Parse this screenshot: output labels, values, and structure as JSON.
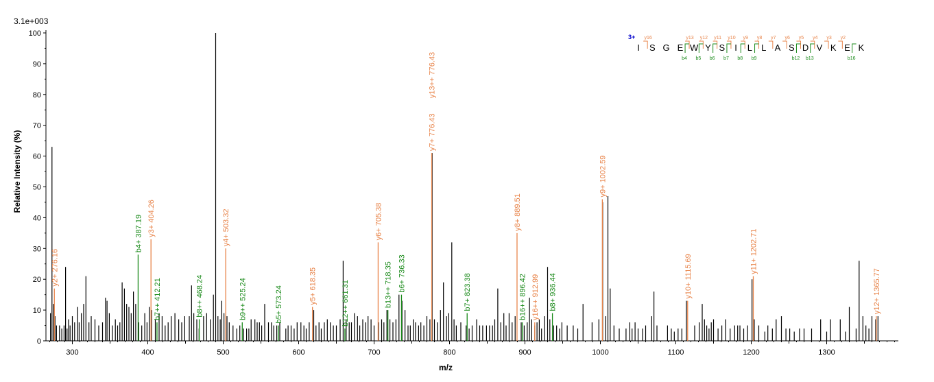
{
  "chart_data": {
    "type": "bar",
    "scale_label": "3.1e+003",
    "xlabel": "m/z",
    "ylabel": "Relative   Intensity (%)",
    "xlim": [
      265,
      1395
    ],
    "ylim": [
      0,
      100
    ],
    "x_ticks": [
      300,
      400,
      500,
      600,
      700,
      800,
      900,
      1000,
      1100,
      1200,
      1300
    ],
    "y_ticks": [
      0,
      10,
      20,
      30,
      40,
      50,
      60,
      70,
      80,
      90,
      100
    ],
    "colors": {
      "y_ion": "#e8844a",
      "b_ion": "#1a8a1a",
      "peak": "#000000",
      "charge": "#0000cc"
    },
    "peaks": [
      [
        271,
        9
      ],
      [
        273,
        63
      ],
      [
        275,
        12
      ],
      [
        277,
        8
      ],
      [
        279,
        5
      ],
      [
        283,
        5
      ],
      [
        286,
        4
      ],
      [
        289,
        5
      ],
      [
        291,
        24
      ],
      [
        293,
        4
      ],
      [
        295,
        7
      ],
      [
        297,
        5
      ],
      [
        300,
        8
      ],
      [
        303,
        6
      ],
      [
        307,
        11
      ],
      [
        309,
        6
      ],
      [
        312,
        9
      ],
      [
        315,
        12
      ],
      [
        318,
        21
      ],
      [
        322,
        6
      ],
      [
        325,
        8
      ],
      [
        330,
        7
      ],
      [
        335,
        5
      ],
      [
        340,
        6
      ],
      [
        344,
        14
      ],
      [
        346,
        13
      ],
      [
        349,
        9
      ],
      [
        353,
        5
      ],
      [
        357,
        7
      ],
      [
        360,
        5
      ],
      [
        363,
        6
      ],
      [
        366,
        19
      ],
      [
        369,
        17
      ],
      [
        372,
        12
      ],
      [
        375,
        11
      ],
      [
        378,
        9
      ],
      [
        381,
        16
      ],
      [
        384,
        12
      ],
      [
        388,
        6
      ],
      [
        392,
        5
      ],
      [
        396,
        9
      ],
      [
        399,
        6
      ],
      [
        402,
        11
      ],
      [
        405,
        10
      ],
      [
        410,
        7
      ],
      [
        415,
        9
      ],
      [
        419,
        8
      ],
      [
        423,
        5
      ],
      [
        427,
        6
      ],
      [
        431,
        8
      ],
      [
        436,
        9
      ],
      [
        441,
        7
      ],
      [
        445,
        6
      ],
      [
        449,
        8
      ],
      [
        455,
        8
      ],
      [
        458,
        18
      ],
      [
        461,
        9
      ],
      [
        465,
        7
      ],
      [
        468,
        4
      ],
      [
        474,
        8
      ],
      [
        478,
        9
      ],
      [
        483,
        7
      ],
      [
        487,
        15
      ],
      [
        490,
        100
      ],
      [
        493,
        8
      ],
      [
        496,
        7
      ],
      [
        498,
        13
      ],
      [
        501,
        9
      ],
      [
        505,
        8
      ],
      [
        508,
        6
      ],
      [
        513,
        5
      ],
      [
        518,
        4
      ],
      [
        522,
        5
      ],
      [
        527,
        4
      ],
      [
        531,
        4
      ],
      [
        534,
        4
      ],
      [
        537,
        7
      ],
      [
        542,
        7
      ],
      [
        545,
        6
      ],
      [
        548,
        6
      ],
      [
        551,
        5
      ],
      [
        555,
        12
      ],
      [
        560,
        6
      ],
      [
        564,
        6
      ],
      [
        567,
        5
      ],
      [
        571,
        5
      ],
      [
        575,
        6
      ],
      [
        583,
        4
      ],
      [
        586,
        5
      ],
      [
        590,
        5
      ],
      [
        594,
        4
      ],
      [
        598,
        6
      ],
      [
        603,
        6
      ],
      [
        607,
        5
      ],
      [
        610,
        4
      ],
      [
        614,
        6
      ],
      [
        620,
        10
      ],
      [
        623,
        5
      ],
      [
        627,
        6
      ],
      [
        630,
        4
      ],
      [
        634,
        6
      ],
      [
        638,
        7
      ],
      [
        642,
        6
      ],
      [
        646,
        5
      ],
      [
        650,
        5
      ],
      [
        655,
        7
      ],
      [
        659,
        26
      ],
      [
        663,
        7
      ],
      [
        667,
        6
      ],
      [
        670,
        6
      ],
      [
        674,
        9
      ],
      [
        678,
        8
      ],
      [
        681,
        5
      ],
      [
        685,
        7
      ],
      [
        689,
        6
      ],
      [
        692,
        8
      ],
      [
        696,
        7
      ],
      [
        700,
        5
      ],
      [
        706,
        6
      ],
      [
        710,
        7
      ],
      [
        713,
        6
      ],
      [
        717,
        10
      ],
      [
        721,
        7
      ],
      [
        725,
        6
      ],
      [
        729,
        7
      ],
      [
        733,
        15
      ],
      [
        737,
        13
      ],
      [
        741,
        10
      ],
      [
        745,
        5
      ],
      [
        748,
        5
      ],
      [
        752,
        7
      ],
      [
        755,
        6
      ],
      [
        759,
        5
      ],
      [
        762,
        6
      ],
      [
        766,
        5
      ],
      [
        770,
        8
      ],
      [
        774,
        7
      ],
      [
        777,
        61
      ],
      [
        780,
        7
      ],
      [
        784,
        6
      ],
      [
        788,
        10
      ],
      [
        792,
        19
      ],
      [
        796,
        8
      ],
      [
        799,
        9
      ],
      [
        803,
        32
      ],
      [
        806,
        7
      ],
      [
        809,
        5
      ],
      [
        815,
        6
      ],
      [
        822,
        5
      ],
      [
        826,
        4
      ],
      [
        830,
        5
      ],
      [
        836,
        7
      ],
      [
        840,
        5
      ],
      [
        844,
        5
      ],
      [
        849,
        5
      ],
      [
        853,
        5
      ],
      [
        857,
        5
      ],
      [
        860,
        7
      ],
      [
        864,
        17
      ],
      [
        868,
        6
      ],
      [
        872,
        9
      ],
      [
        875,
        5
      ],
      [
        879,
        9
      ],
      [
        883,
        6
      ],
      [
        887,
        8
      ],
      [
        895,
        6
      ],
      [
        899,
        5
      ],
      [
        903,
        6
      ],
      [
        906,
        14
      ],
      [
        909,
        7
      ],
      [
        913,
        5
      ],
      [
        916,
        6
      ],
      [
        919,
        7
      ],
      [
        922,
        4
      ],
      [
        926,
        8
      ],
      [
        930,
        24
      ],
      [
        933,
        7
      ],
      [
        938,
        5
      ],
      [
        942,
        5
      ],
      [
        946,
        4
      ],
      [
        949,
        6
      ],
      [
        956,
        5
      ],
      [
        964,
        5
      ],
      [
        970,
        4
      ],
      [
        977,
        12
      ],
      [
        989,
        6
      ],
      [
        998,
        7
      ],
      [
        1003,
        45
      ],
      [
        1007,
        8
      ],
      [
        1010,
        47
      ],
      [
        1013,
        17
      ],
      [
        1018,
        5
      ],
      [
        1025,
        4
      ],
      [
        1034,
        4
      ],
      [
        1039,
        6
      ],
      [
        1042,
        4
      ],
      [
        1046,
        6
      ],
      [
        1050,
        4
      ],
      [
        1056,
        4
      ],
      [
        1060,
        5
      ],
      [
        1068,
        8
      ],
      [
        1071,
        16
      ],
      [
        1075,
        5
      ],
      [
        1089,
        5
      ],
      [
        1094,
        4
      ],
      [
        1098,
        3
      ],
      [
        1103,
        4
      ],
      [
        1108,
        4
      ],
      [
        1114,
        13
      ],
      [
        1125,
        5
      ],
      [
        1131,
        6
      ],
      [
        1135,
        12
      ],
      [
        1138,
        7
      ],
      [
        1141,
        5
      ],
      [
        1144,
        4
      ],
      [
        1147,
        6
      ],
      [
        1150,
        7
      ],
      [
        1156,
        4
      ],
      [
        1161,
        5
      ],
      [
        1166,
        7
      ],
      [
        1172,
        4
      ],
      [
        1178,
        5
      ],
      [
        1182,
        5
      ],
      [
        1185,
        5
      ],
      [
        1190,
        4
      ],
      [
        1195,
        5
      ],
      [
        1201,
        20
      ],
      [
        1204,
        7
      ],
      [
        1210,
        5
      ],
      [
        1218,
        3
      ],
      [
        1222,
        5
      ],
      [
        1228,
        4
      ],
      [
        1233,
        7
      ],
      [
        1240,
        8
      ],
      [
        1246,
        4
      ],
      [
        1251,
        4
      ],
      [
        1257,
        3
      ],
      [
        1264,
        4
      ],
      [
        1270,
        4
      ],
      [
        1280,
        4
      ],
      [
        1292,
        7
      ],
      [
        1300,
        3
      ],
      [
        1305,
        7
      ],
      [
        1318,
        7
      ],
      [
        1325,
        3
      ],
      [
        1330,
        11
      ],
      [
        1339,
        4
      ],
      [
        1343,
        26
      ],
      [
        1348,
        8
      ],
      [
        1352,
        5
      ],
      [
        1356,
        4
      ],
      [
        1360,
        8
      ],
      [
        1365,
        7
      ],
      [
        1368,
        8
      ]
    ],
    "annotations": [
      {
        "label": "y2+ 276.16",
        "x": 276.16,
        "y": 17,
        "ion": "y"
      },
      {
        "label": "b4+ 387.19",
        "x": 387.19,
        "y": 28,
        "ion": "b"
      },
      {
        "label": "y3+ 404.26",
        "x": 404.26,
        "y": 33,
        "ion": "y"
      },
      {
        "label": "b7++ 412.21",
        "x": 412.21,
        "y": 6,
        "ion": "b"
      },
      {
        "label": "b8++ 468.24",
        "x": 468.24,
        "y": 7,
        "ion": "b"
      },
      {
        "label": "y4+ 503.32",
        "x": 503.32,
        "y": 30,
        "ion": "y"
      },
      {
        "label": "b9++ 525.24",
        "x": 525.24,
        "y": 6,
        "ion": "b"
      },
      {
        "label": "b5+ 573.24",
        "x": 573.24,
        "y": 5,
        "ion": "b"
      },
      {
        "label": "y5+ 618.35",
        "x": 618.35,
        "y": 11,
        "ion": "y"
      },
      {
        "label": "b12++ 661.31",
        "x": 661.31,
        "y": 4,
        "ion": "b"
      },
      {
        "label": "y6+ 705.38",
        "x": 705.38,
        "y": 32,
        "ion": "y"
      },
      {
        "label": "b13++ 718.35",
        "x": 718.35,
        "y": 10,
        "ion": "b"
      },
      {
        "label": "b6+ 736.33",
        "x": 736.33,
        "y": 15,
        "ion": "b"
      },
      {
        "label": "y7+ 776.43",
        "x": 776.43,
        "y": 61,
        "ion": "y",
        "label2": "y13++ 776.43"
      },
      {
        "label": "b7+ 823.38",
        "x": 823.38,
        "y": 9,
        "ion": "b"
      },
      {
        "label": "y8+ 889.51",
        "x": 889.51,
        "y": 35,
        "ion": "y"
      },
      {
        "label": "b16++ 896.42",
        "x": 896.42,
        "y": 6,
        "ion": "b"
      },
      {
        "label": "y16++ 912.99",
        "x": 912.99,
        "y": 6,
        "ion": "y"
      },
      {
        "label": "b8+ 936.44",
        "x": 936.44,
        "y": 9,
        "ion": "b"
      },
      {
        "label": "y9+ 1002.59",
        "x": 1002.59,
        "y": 46,
        "ion": "y"
      },
      {
        "label": "y10+ 1115.69",
        "x": 1115.69,
        "y": 13,
        "ion": "y"
      },
      {
        "label": "y11+ 1202.71",
        "x": 1202.71,
        "y": 21,
        "ion": "y"
      },
      {
        "label": "y12+ 1365.77",
        "x": 1365.77,
        "y": 8,
        "ion": "y"
      }
    ]
  },
  "sequence": {
    "charge": "3+",
    "residues": [
      "I",
      "S",
      "G",
      "E",
      "W",
      "Y",
      "S",
      "I",
      "L",
      "L",
      "A",
      "S",
      "D",
      "V",
      "K",
      "E",
      "K"
    ],
    "y_labels": [
      {
        "label": "y16",
        "after": 0
      },
      {
        "label": "y13",
        "after": 3
      },
      {
        "label": "y12",
        "after": 4
      },
      {
        "label": "y11",
        "after": 5
      },
      {
        "label": "y10",
        "after": 6
      },
      {
        "label": "y9",
        "after": 7
      },
      {
        "label": "y8",
        "after": 8
      },
      {
        "label": "y7",
        "after": 9
      },
      {
        "label": "y6",
        "after": 10
      },
      {
        "label": "y5",
        "after": 11
      },
      {
        "label": "y4",
        "after": 12
      },
      {
        "label": "y3",
        "after": 13
      },
      {
        "label": "y2",
        "after": 14
      }
    ],
    "b_labels": [
      {
        "label": "b4",
        "after": 3
      },
      {
        "label": "b5",
        "after": 4
      },
      {
        "label": "b6",
        "after": 5
      },
      {
        "label": "b7",
        "after": 6
      },
      {
        "label": "b8",
        "after": 7
      },
      {
        "label": "b9",
        "after": 8
      },
      {
        "label": "b12",
        "after": 11
      },
      {
        "label": "b13",
        "after": 12
      },
      {
        "label": "b16",
        "after": 15
      }
    ]
  }
}
